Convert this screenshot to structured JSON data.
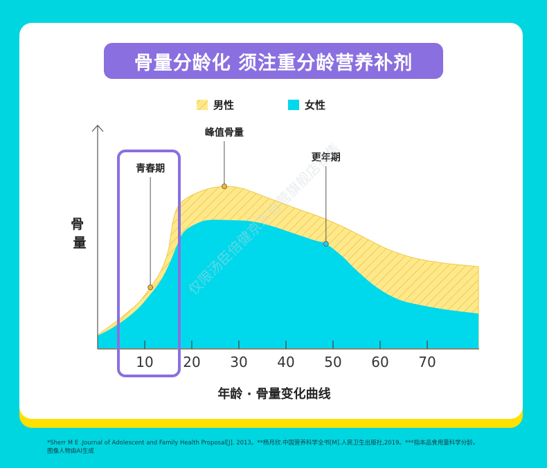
{
  "title": "骨量分龄化 须注重分龄营养补剂",
  "chart_data": {
    "type": "area",
    "title": "骨量分龄化 须注重分龄营养补剂",
    "xlabel": "年龄 · 骨量变化曲线",
    "ylabel": "骨量",
    "x_ticks": [
      10,
      20,
      30,
      40,
      50,
      60,
      70
    ],
    "xlim": [
      0,
      81
    ],
    "ylim": [
      0,
      100
    ],
    "legend_position": "top-center",
    "series": [
      {
        "name": "男性",
        "color": "#fde98a",
        "hatch": "#f1b63c",
        "points": [
          [
            0,
            5.9
          ],
          [
            2.8,
            10.2
          ],
          [
            5.7,
            14.9
          ],
          [
            8.7,
            20.4
          ],
          [
            11.2,
            27.2
          ],
          [
            13.4,
            34.4
          ],
          [
            15.0,
            43.7
          ],
          [
            16.0,
            56.7
          ],
          [
            17.2,
            63.8
          ],
          [
            19.7,
            68.1
          ],
          [
            23.4,
            71.2
          ],
          [
            26.9,
            72.4
          ],
          [
            30.7,
            71.5
          ],
          [
            35.1,
            68.1
          ],
          [
            39.4,
            64.7
          ],
          [
            43.8,
            61.3
          ],
          [
            47.9,
            58.2
          ],
          [
            52.8,
            53.6
          ],
          [
            57.2,
            48.9
          ],
          [
            61.6,
            44.3
          ],
          [
            67.5,
            40.2
          ],
          [
            73.4,
            38.1
          ],
          [
            80.9,
            36.5
          ]
        ]
      },
      {
        "name": "女性",
        "color": "#00d8ec",
        "points": [
          [
            0,
            5.6
          ],
          [
            2.8,
            8.7
          ],
          [
            5.7,
            12.7
          ],
          [
            8.7,
            18.0
          ],
          [
            11.2,
            24.1
          ],
          [
            13.4,
            30.3
          ],
          [
            15.3,
            38.1
          ],
          [
            16.8,
            45.8
          ],
          [
            18.2,
            51.7
          ],
          [
            20.4,
            55.1
          ],
          [
            23.4,
            57.3
          ],
          [
            27.8,
            57.3
          ],
          [
            32.8,
            56.7
          ],
          [
            37.2,
            54.5
          ],
          [
            41.6,
            51.4
          ],
          [
            46.0,
            48.3
          ],
          [
            48.5,
            46.7
          ],
          [
            51.9,
            41.2
          ],
          [
            54.9,
            35.0
          ],
          [
            59.3,
            27.2
          ],
          [
            63.7,
            22.0
          ],
          [
            68.1,
            19.5
          ],
          [
            74.0,
            17.3
          ],
          [
            80.9,
            15.5
          ]
        ]
      }
    ],
    "annotations": [
      {
        "label": "青春期",
        "age": 11.2,
        "value": 27.2,
        "series": "男性",
        "dot": "#f5b82e"
      },
      {
        "label": "峰值骨量",
        "age": 26.9,
        "value": 72.4,
        "series": "男性",
        "dot": "#f5b82e"
      },
      {
        "label": "更年期",
        "age": 48.5,
        "value": 46.7,
        "series": "女性",
        "dot": "#2ec6e0"
      }
    ],
    "highlight_range": [
      4,
      17
    ],
    "highlight_color": "#8a6fe0"
  },
  "footnote": {
    "line1": "*Sherr M E .Journal of Adolescent and Family Health Proposal[J]. 2013。**杨月欣.中国营养科学全书[M].人民卫生出版社,2019。***指本品食用量科学分龄。",
    "line2": "图像人物由AI生成"
  },
  "watermark": "仅限汤臣倍健京东自营旗舰店销售"
}
